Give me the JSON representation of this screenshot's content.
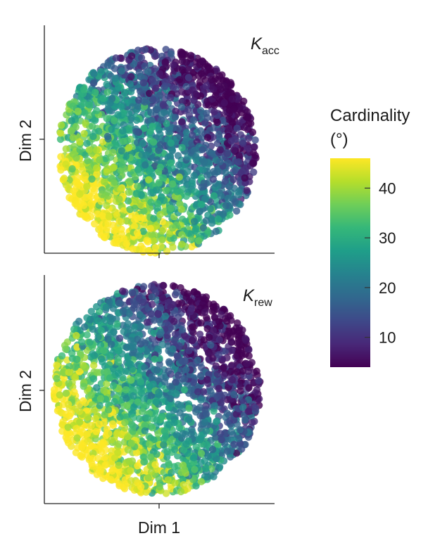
{
  "chart_data": [
    {
      "type": "scatter",
      "panel_label": {
        "base": "K",
        "sub": "acc"
      },
      "xlabel": "",
      "ylabel": "Dim 2",
      "color_by": "Cardinality",
      "notes": "Embedding of samples colored by cardinality; low-cardinality points in the upper right, high-cardinality in the lower left",
      "color_gradient_angle_deg": 45,
      "cloud": {
        "center": [
          0.49,
          0.55
        ],
        "rx": 0.43,
        "ry": 0.45,
        "count": 2200,
        "seed": 11
      }
    },
    {
      "type": "scatter",
      "panel_label": {
        "base": "K",
        "sub": "rew"
      },
      "xlabel": "Dim 1",
      "ylabel": "Dim 2",
      "color_by": "Cardinality",
      "color_gradient_angle_deg": 40,
      "cloud": {
        "center": [
          0.49,
          0.5
        ],
        "rx": 0.45,
        "ry": 0.46,
        "count": 2200,
        "seed": 29
      }
    }
  ],
  "colorbar": {
    "title_line1": "Cardinality",
    "title_line2": "(°)",
    "range": [
      4,
      46
    ],
    "ticks": [
      10,
      20,
      30,
      40
    ],
    "colormap": "viridis",
    "stops": [
      "#440154",
      "#482878",
      "#3e4989",
      "#31688e",
      "#26828e",
      "#1f9e89",
      "#35b779",
      "#6ece58",
      "#b5de2b",
      "#fde725"
    ]
  }
}
